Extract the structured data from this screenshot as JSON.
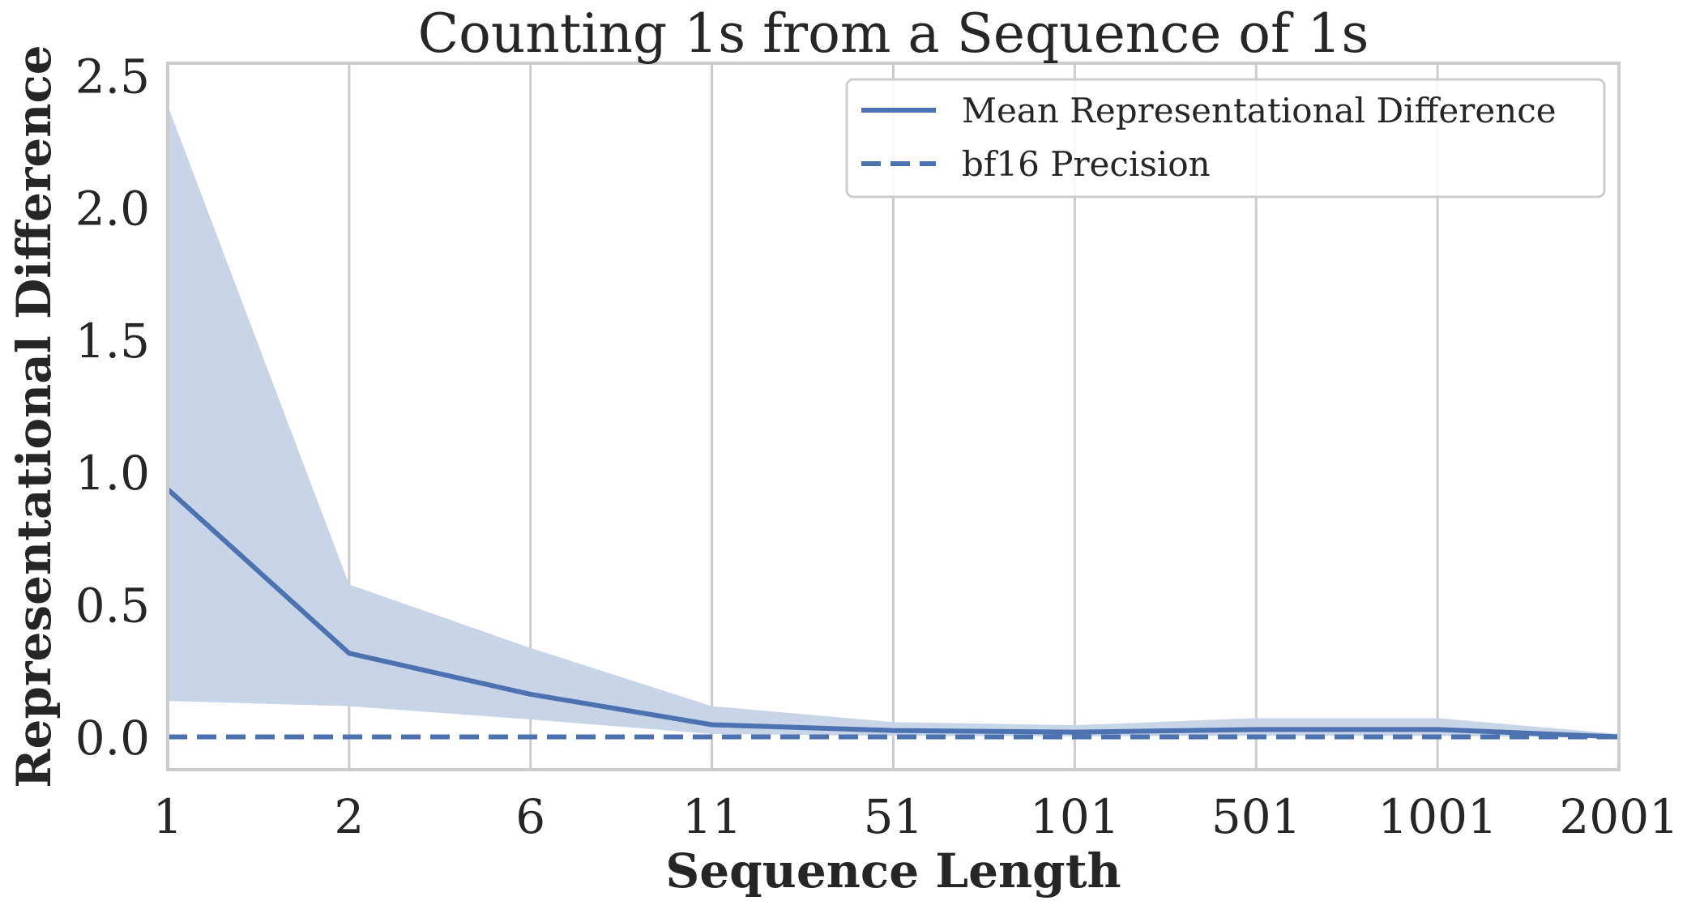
{
  "chart_data": {
    "type": "line",
    "title": "Counting 1s from a Sequence of 1s",
    "xlabel": "Sequence Length",
    "ylabel": "Representational Difference",
    "x_scale": "categorical",
    "categories": [
      "1",
      "2",
      "6",
      "11",
      "51",
      "101",
      "501",
      "1001",
      "2001"
    ],
    "ylim": [
      -0.12,
      2.55
    ],
    "yticks": [
      0.0,
      0.5,
      1.0,
      1.5,
      2.0,
      2.5
    ],
    "ytick_labels": [
      "0.0",
      "0.5",
      "1.0",
      "1.5",
      "2.0",
      "2.5"
    ],
    "grid": "vertical",
    "legend_position": "top-right",
    "series": [
      {
        "name": "Mean Representational Difference",
        "style": "solid",
        "color": "#4c72b0",
        "values": [
          0.94,
          0.32,
          0.165,
          0.05,
          0.028,
          0.022,
          0.032,
          0.032,
          0.004
        ],
        "band_lower": [
          0.14,
          0.12,
          0.07,
          0.015,
          0.008,
          0.006,
          0.008,
          0.008,
          0.0
        ],
        "band_upper": [
          2.39,
          0.58,
          0.34,
          0.12,
          0.06,
          0.048,
          0.075,
          0.075,
          0.015
        ],
        "band_color": "#c8d4e8"
      },
      {
        "name": "bf16 Precision",
        "style": "dashed",
        "color": "#4c72b0",
        "values": [
          0.0039,
          0.0039,
          0.0039,
          0.0039,
          0.0039,
          0.0039,
          0.0039,
          0.0039,
          0.0039
        ]
      }
    ]
  }
}
